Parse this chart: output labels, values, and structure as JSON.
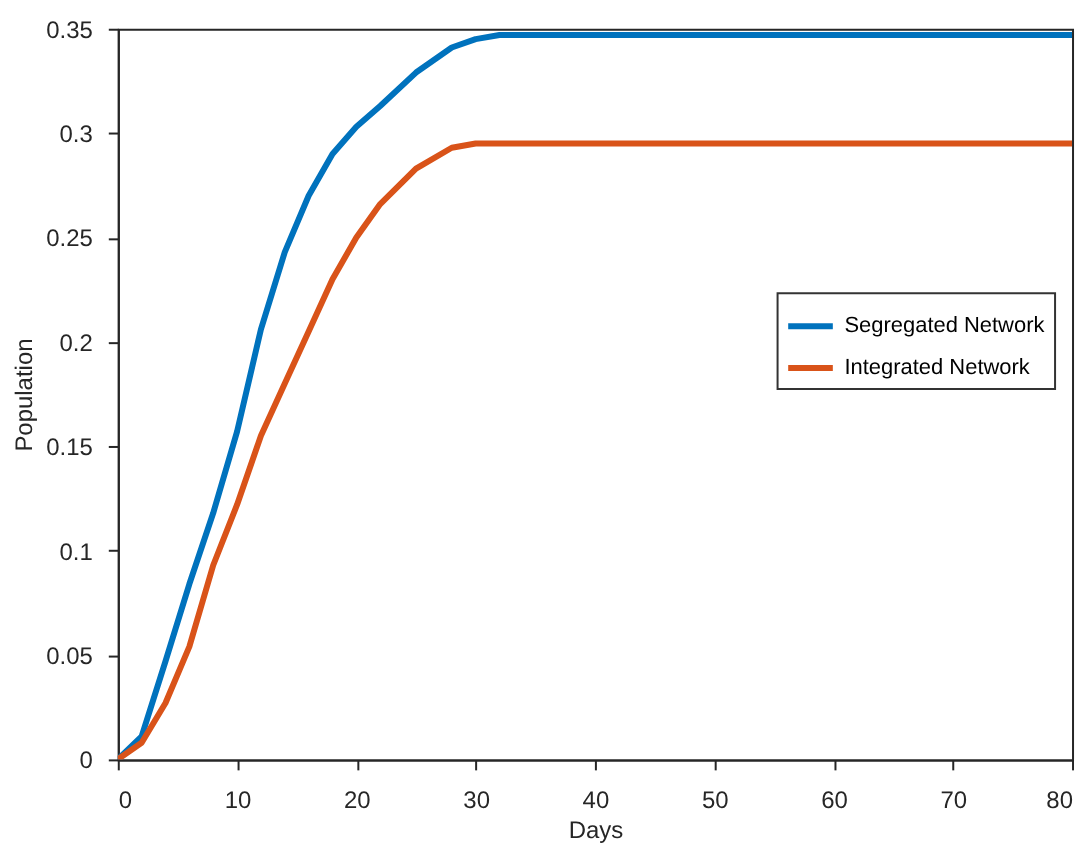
{
  "chart_data": {
    "type": "line",
    "xlabel": "Days",
    "ylabel": "Population",
    "xlim": [
      0,
      80
    ],
    "xticks": [
      0,
      10,
      20,
      30,
      40,
      50,
      60,
      70,
      80
    ],
    "ylim": [
      0,
      0.35
    ],
    "yticks": [
      0,
      0.05,
      0.1,
      0.15,
      0.2,
      0.25,
      0.3,
      0.35
    ],
    "grid": false,
    "legend": "right",
    "marker": "none",
    "line_style": "solid",
    "series": [
      {
        "name": "Segregated Network",
        "color": "#0072bd",
        "x": [
          0,
          2,
          4,
          6,
          8,
          10,
          12,
          14,
          16,
          18,
          20,
          22,
          25,
          28,
          30,
          32,
          40,
          50,
          60,
          70,
          80
        ],
        "values": [
          0,
          0.011,
          0.047,
          0.084,
          0.118,
          0.157,
          0.206,
          0.243,
          0.27,
          0.29,
          0.303,
          0.313,
          0.329,
          0.341,
          0.345,
          0.347,
          0.347,
          0.347,
          0.347,
          0.347,
          0.347
        ]
      },
      {
        "name": "Integrated Network",
        "color": "#d95319",
        "x": [
          0,
          2,
          4,
          6,
          8,
          10,
          12,
          14,
          16,
          18,
          20,
          22,
          25,
          28,
          30,
          40,
          50,
          60,
          70,
          80
        ],
        "values": [
          0,
          0.008,
          0.027,
          0.054,
          0.093,
          0.122,
          0.155,
          0.18,
          0.205,
          0.23,
          0.25,
          0.266,
          0.283,
          0.293,
          0.295,
          0.295,
          0.295,
          0.295,
          0.295,
          0.295
        ]
      }
    ]
  }
}
